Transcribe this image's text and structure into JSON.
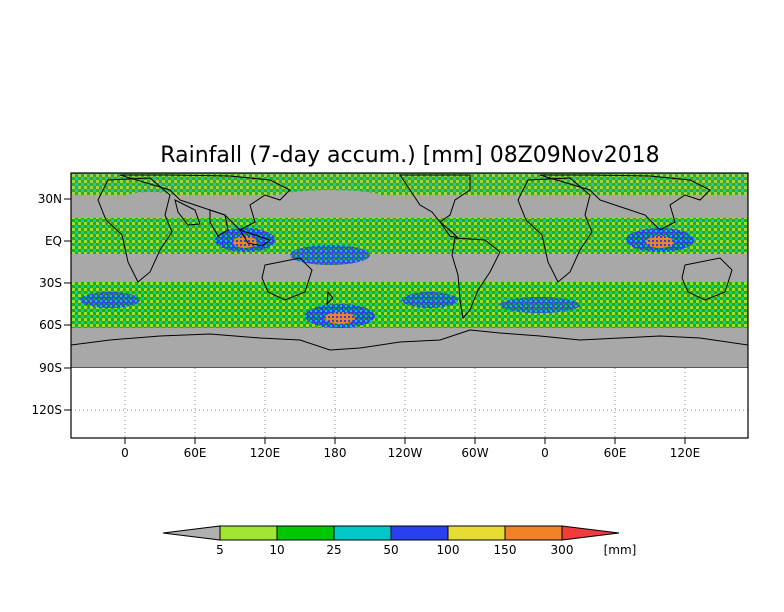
{
  "map": {
    "title": "Rainfall (7-day accum.) [mm] 08Z09Nov2018",
    "lat_ticks": [
      "30N",
      "EQ",
      "30S",
      "60S",
      "90S",
      "120S"
    ],
    "lon_ticks": [
      "0",
      "60E",
      "120E",
      "180",
      "120W",
      "60W",
      "0",
      "60E",
      "120E"
    ],
    "land_mask_color": "#a8a8a8",
    "background_color": "#ffffff",
    "coast_color": "#000000",
    "grid": "dotted"
  },
  "colorbar": {
    "unit": "[mm]",
    "labels": [
      "5",
      "10",
      "25",
      "50",
      "100",
      "150",
      "300"
    ],
    "colors": [
      "#b0b0b0",
      "#a0e632",
      "#00c800",
      "#00c8c8",
      "#2840f0",
      "#e6dc32",
      "#f08228",
      "#f03c3c"
    ]
  }
}
